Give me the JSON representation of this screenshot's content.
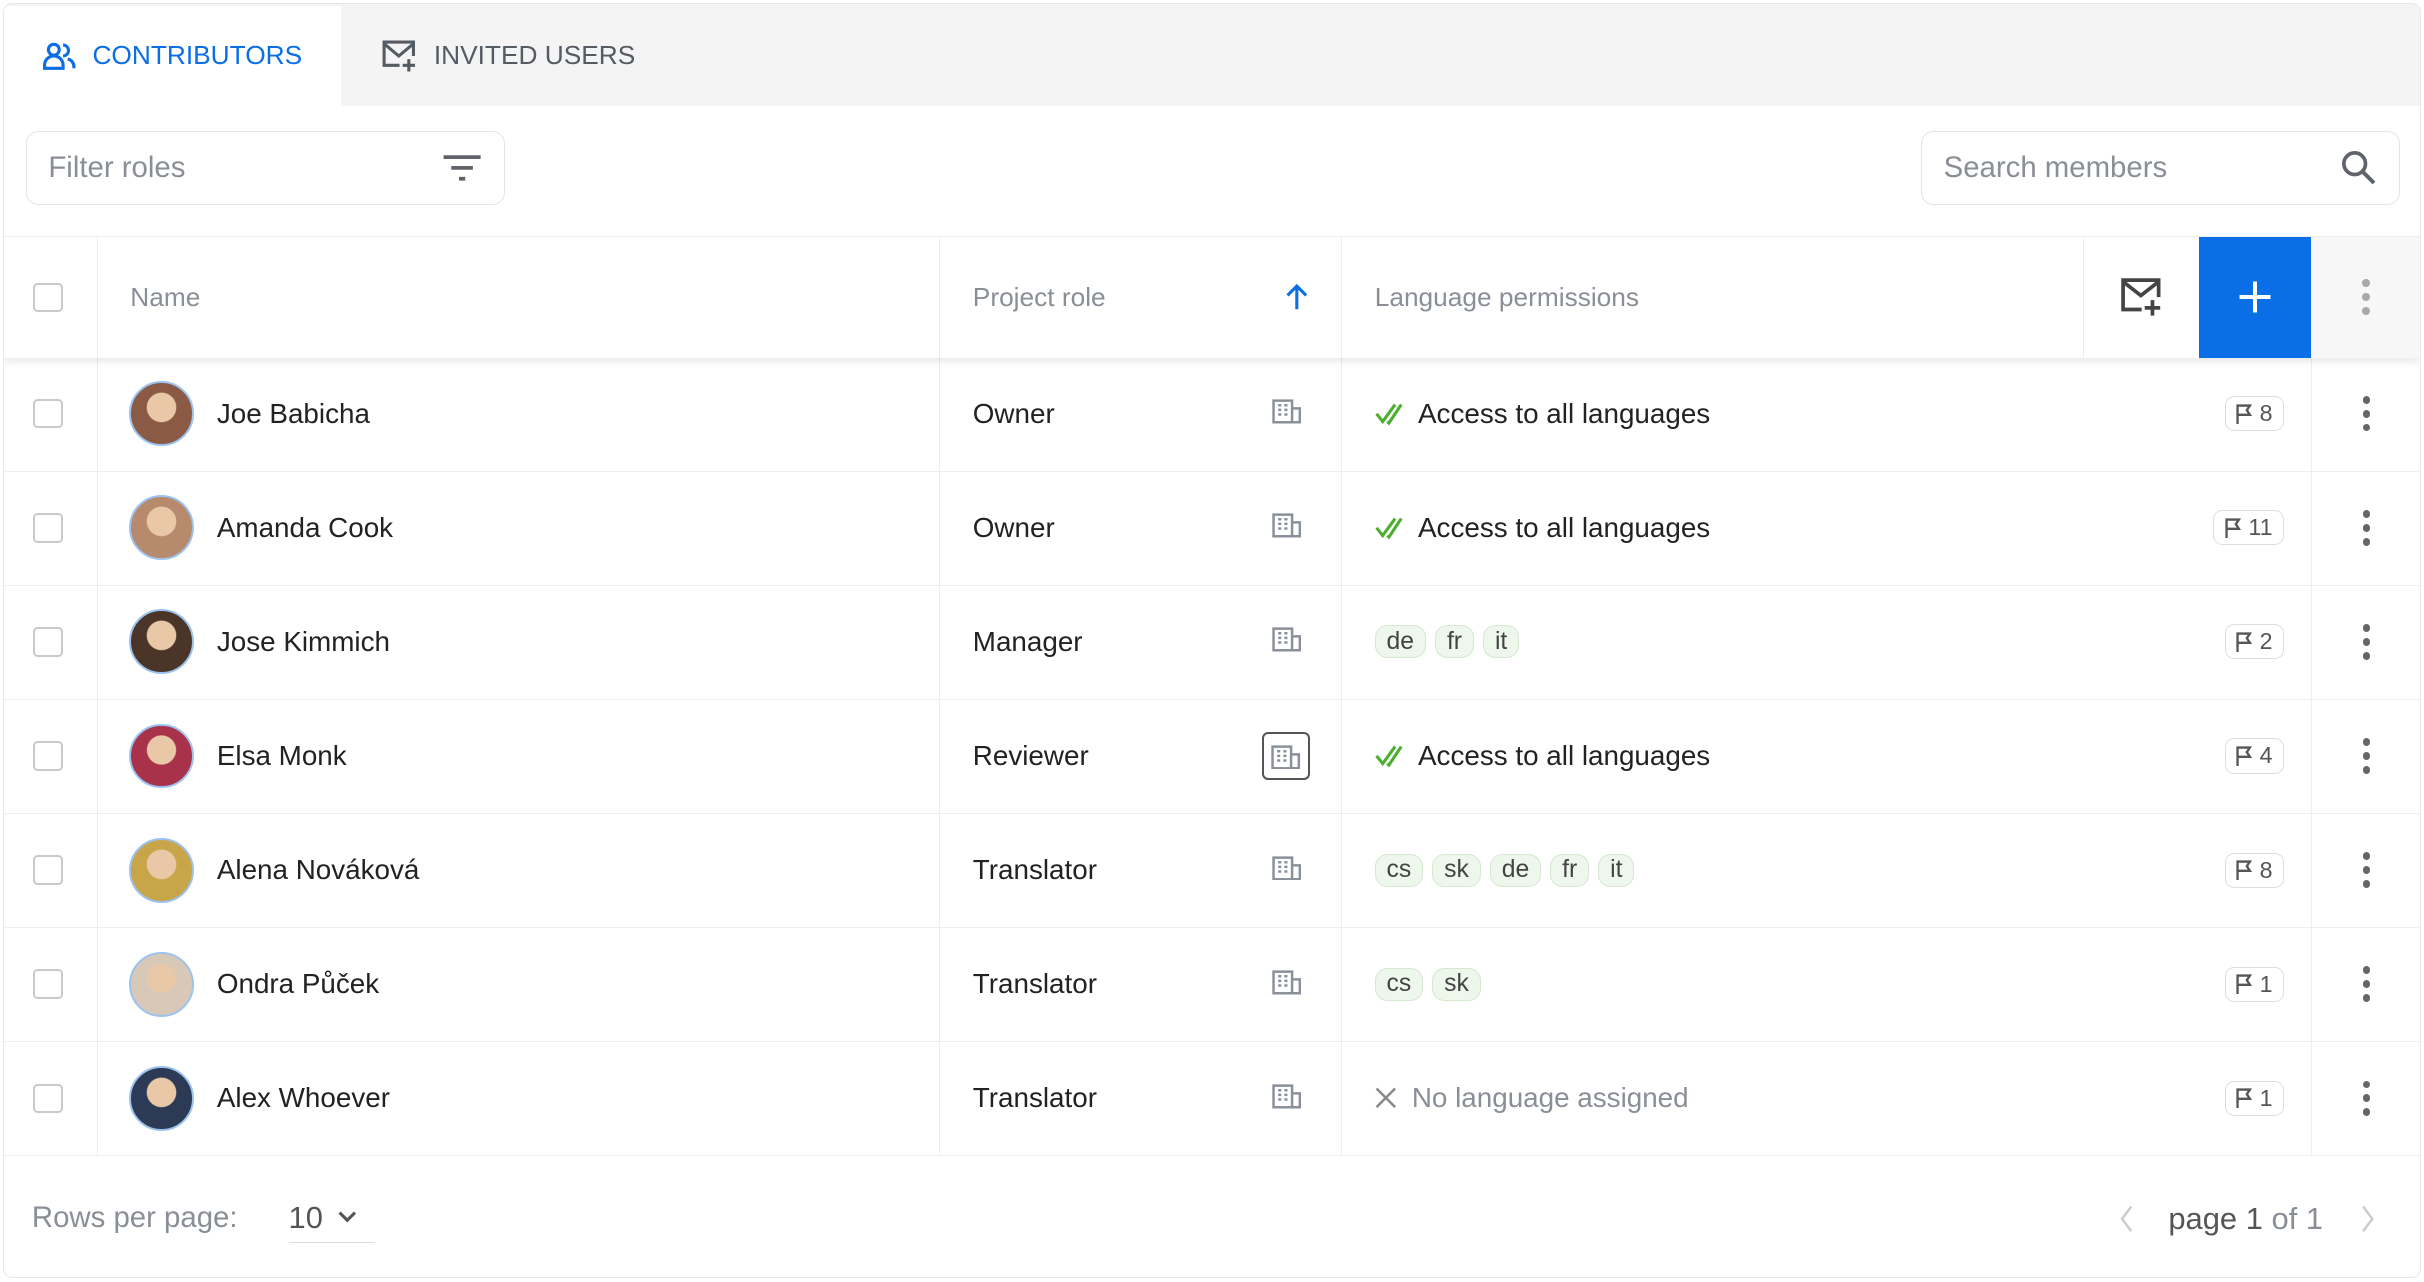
{
  "tabs": [
    {
      "label": "CONTRIBUTORS",
      "icon": "people-icon",
      "active": true
    },
    {
      "label": "INVITED USERS",
      "icon": "mail-plus-icon",
      "active": false
    }
  ],
  "filter": {
    "placeholder": "Filter roles"
  },
  "search": {
    "placeholder": "Search members"
  },
  "columns": {
    "name": "Name",
    "role": "Project role",
    "languages": "Language permissions",
    "sort": "ascending"
  },
  "colors": {
    "accent": "#0a6ee6",
    "check": "#4caf2f"
  },
  "rows": [
    {
      "name": "Joe Babicha",
      "role": "Owner",
      "role_icon": "building-icon",
      "access": "Access to all languages",
      "langs": [],
      "flags": "8",
      "avatar": "#8a5a44"
    },
    {
      "name": "Amanda Cook",
      "role": "Owner",
      "role_icon": "building-icon",
      "access": "Access to all languages",
      "langs": [],
      "flags": "11",
      "avatar": "#b78a6e"
    },
    {
      "name": "Jose Kimmich",
      "role": "Manager",
      "role_icon": "building-up-icon",
      "access": "",
      "langs": [
        "de",
        "fr",
        "it"
      ],
      "flags": "2",
      "avatar": "#4a3528"
    },
    {
      "name": "Elsa Monk",
      "role": "Reviewer",
      "role_icon": "building-plus-icon",
      "access": "Access to all languages",
      "langs": [],
      "flags": "4",
      "avatar": "#a8324a"
    },
    {
      "name": "Alena Nováková",
      "role": "Translator",
      "role_icon": "building-icon",
      "access": "",
      "langs": [
        "cs",
        "sk",
        "de",
        "fr",
        "it"
      ],
      "flags": "8",
      "avatar": "#c9a54a"
    },
    {
      "name": "Ondra Půček",
      "role": "Translator",
      "role_icon": "building-icon",
      "access": "",
      "langs": [
        "cs",
        "sk"
      ],
      "flags": "1",
      "avatar": "#d8c8b8"
    },
    {
      "name": "Alex Whoever",
      "role": "Translator",
      "role_icon": "building-icon",
      "access": "",
      "none": "No language assigned",
      "langs": [],
      "flags": "1",
      "avatar": "#2c3a55"
    }
  ],
  "footer": {
    "rows_label": "Rows per page:",
    "rows_value": "10",
    "page_word": "page",
    "page_current": "1",
    "page_of": "of 1"
  }
}
